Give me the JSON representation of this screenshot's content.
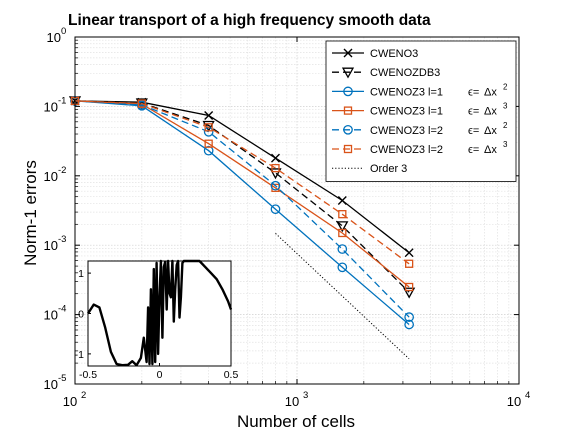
{
  "chart_data": {
    "type": "line",
    "title": "Linear transport of a high frequency smooth data",
    "xlabel": "Number of cells",
    "ylabel": "Norm-1 errors",
    "xscale": "log",
    "yscale": "log",
    "xlim": [
      100,
      10000
    ],
    "ylim": [
      1e-05,
      1
    ],
    "grid": "on (major and minor)",
    "legend_position": "top-right",
    "x_ticks": [
      {
        "value": 100,
        "base": "10",
        "exp": "2"
      },
      {
        "value": 1000,
        "base": "10",
        "exp": "3"
      },
      {
        "value": 10000,
        "base": "10",
        "exp": "4"
      }
    ],
    "y_ticks": [
      {
        "value": 1,
        "base": "10",
        "exp": "0"
      },
      {
        "value": 0.1,
        "base": "10",
        "exp": "-1"
      },
      {
        "value": 0.01,
        "base": "10",
        "exp": "-2"
      },
      {
        "value": 0.001,
        "base": "10",
        "exp": "-3"
      },
      {
        "value": 0.0001,
        "base": "10",
        "exp": "-4"
      },
      {
        "value": 1e-05,
        "base": "10",
        "exp": "-5"
      }
    ],
    "series": [
      {
        "name": "CWENO3",
        "color": "#000000",
        "dash": "solid",
        "marker": "x",
        "x": [
          100,
          200,
          400,
          800,
          1600,
          3200
        ],
        "y": [
          0.12,
          0.115,
          0.074,
          0.018,
          0.0044,
          0.00078
        ]
      },
      {
        "name": "CWENOZDB3",
        "color": "#000000",
        "dash": "dashed",
        "marker": "triangle-down",
        "x": [
          100,
          200,
          400,
          800,
          1600,
          3200
        ],
        "y": [
          0.12,
          0.112,
          0.053,
          0.011,
          0.0019,
          0.00021
        ]
      },
      {
        "name": "CWENOZ3 l=1",
        "eps_base": "Δx",
        "eps_exp": "2",
        "color": "#0072bd",
        "dash": "solid",
        "marker": "circle",
        "x": [
          100,
          200,
          400,
          800,
          1600,
          3200
        ],
        "y": [
          0.12,
          0.102,
          0.023,
          0.0033,
          0.00048,
          7.2e-05
        ]
      },
      {
        "name": "CWENOZ3 l=1",
        "eps_base": "Δx",
        "eps_exp": "3",
        "color": "#d95319",
        "dash": "solid",
        "marker": "square",
        "x": [
          100,
          200,
          400,
          800,
          1600,
          3200
        ],
        "y": [
          0.12,
          0.108,
          0.029,
          0.0067,
          0.0015,
          0.00025
        ]
      },
      {
        "name": "CWENOZ3 l=2",
        "eps_base": "Δx",
        "eps_exp": "2",
        "color": "#0072bd",
        "dash": "dashed",
        "marker": "circle",
        "x": [
          100,
          200,
          400,
          800,
          1600,
          3200
        ],
        "y": [
          0.12,
          0.105,
          0.043,
          0.0072,
          0.00088,
          9.2e-05
        ]
      },
      {
        "name": "CWENOZ3 l=2",
        "eps_base": "Δx",
        "eps_exp": "3",
        "color": "#d95319",
        "dash": "dashed",
        "marker": "square",
        "x": [
          100,
          200,
          400,
          800,
          1600,
          3200
        ],
        "y": [
          0.12,
          0.11,
          0.05,
          0.0129,
          0.0028,
          0.00054
        ]
      },
      {
        "name": "Order 3",
        "color": "#000000",
        "dash": "dotted",
        "marker": "none",
        "x": [
          800,
          3200
        ],
        "y": [
          0.00148,
          2.31e-05
        ]
      }
    ],
    "eps_label": "ϵ=",
    "inset": {
      "type": "line",
      "xlim": [
        -0.5,
        0.5
      ],
      "ylim": [
        -1.3,
        1.3
      ],
      "x_tick_labels": [
        "-0.5",
        "0",
        "0.5"
      ],
      "y_tick_labels": [
        "1",
        "0",
        "-1"
      ],
      "color": "#000000",
      "x": [
        -0.5,
        -0.46,
        -0.42,
        -0.38,
        -0.34,
        -0.3,
        -0.26,
        -0.22,
        -0.19,
        -0.16,
        -0.13,
        -0.11,
        -0.09,
        -0.08,
        -0.07,
        -0.06,
        -0.05,
        -0.04,
        -0.03,
        -0.02,
        -0.01,
        0.0,
        0.01,
        0.02,
        0.03,
        0.04,
        0.05,
        0.06,
        0.07,
        0.08,
        0.09,
        0.1,
        0.11,
        0.12,
        0.13,
        0.14,
        0.15,
        0.16,
        0.17,
        0.18,
        0.2,
        0.24,
        0.28,
        0.32,
        0.36,
        0.4,
        0.44,
        0.48,
        0.5
      ],
      "y": [
        0.0,
        0.22,
        0.15,
        -0.35,
        -0.95,
        -1.25,
        -1.28,
        -1.27,
        -1.18,
        -1.28,
        -1.1,
        -0.6,
        -1.2,
        0.15,
        -1.25,
        0.6,
        -1.25,
        1.1,
        -1.2,
        1.25,
        -1.0,
        0.4,
        1.3,
        -0.6,
        1.15,
        1.28,
        0.1,
        1.3,
        0.5,
        0.4,
        1.3,
        -0.2,
        0.6,
        1.2,
        1.3,
        -0.1,
        0.4,
        1.25,
        1.3,
        1.3,
        1.3,
        1.3,
        1.3,
        1.15,
        1.0,
        0.85,
        0.6,
        0.3,
        0.1
      ]
    }
  }
}
